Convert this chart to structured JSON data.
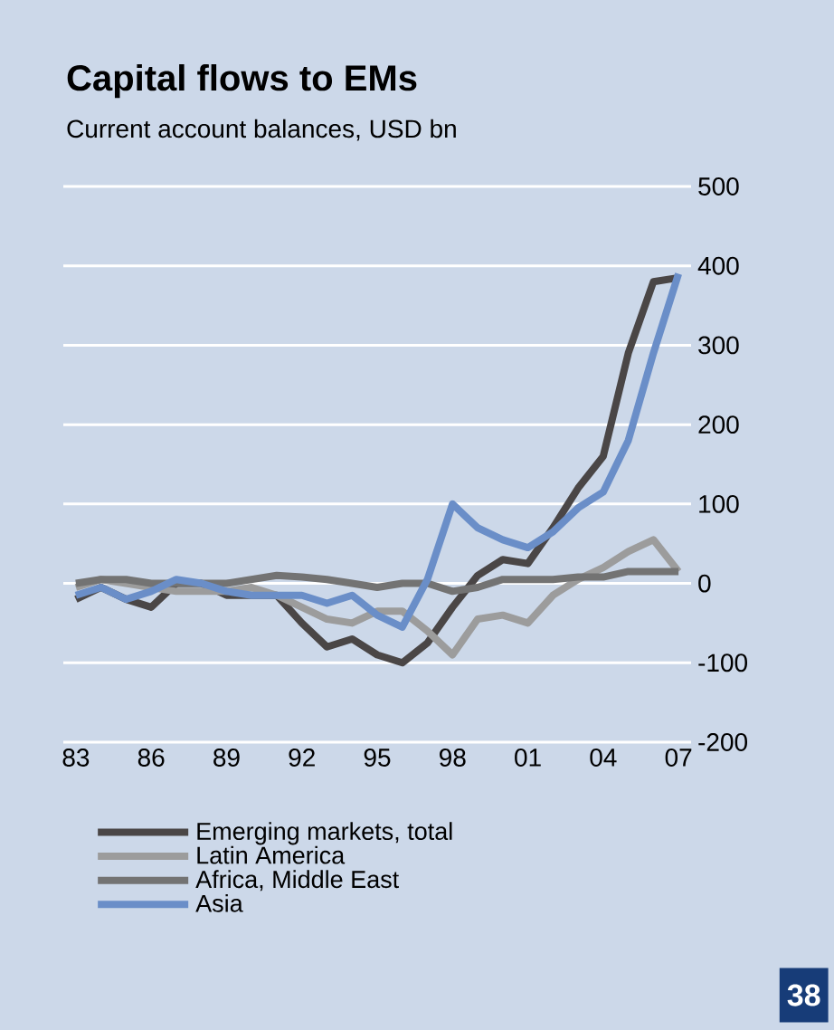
{
  "chart_data": {
    "type": "line",
    "title": "Capital flows to EMs",
    "subtitle": "Current account balances, USD bn",
    "categories": [
      "83",
      null,
      null,
      "86",
      null,
      null,
      "89",
      null,
      null,
      "92",
      null,
      null,
      "95",
      null,
      null,
      "98",
      null,
      null,
      "01",
      null,
      null,
      "04",
      null,
      null,
      "07"
    ],
    "series": [
      {
        "name": "Emerging markets, total",
        "color": "#4a4646",
        "values": [
          -20,
          -5,
          -20,
          -30,
          0,
          0,
          -15,
          -15,
          -15,
          -50,
          -80,
          -70,
          -90,
          -100,
          -75,
          -30,
          10,
          30,
          25,
          70,
          120,
          160,
          290,
          380,
          385
        ]
      },
      {
        "name": "Latin America",
        "color": "#9c9c9c",
        "values": [
          -5,
          5,
          0,
          -5,
          -10,
          -10,
          -10,
          -5,
          -15,
          -30,
          -45,
          -50,
          -35,
          -35,
          -60,
          -90,
          -45,
          -40,
          -50,
          -15,
          5,
          20,
          40,
          55,
          15
        ]
      },
      {
        "name": "Africa, Middle East",
        "color": "#737373",
        "values": [
          0,
          5,
          5,
          0,
          0,
          0,
          0,
          5,
          10,
          8,
          5,
          0,
          -5,
          0,
          0,
          -10,
          -5,
          5,
          5,
          5,
          8,
          8,
          15,
          15,
          15
        ]
      },
      {
        "name": "Asia",
        "color": "#6a8ec8",
        "values": [
          -15,
          -5,
          -20,
          -10,
          5,
          0,
          -10,
          -15,
          -15,
          -15,
          -25,
          -15,
          -40,
          -55,
          5,
          100,
          70,
          55,
          45,
          65,
          95,
          115,
          180,
          290,
          390
        ]
      }
    ],
    "ylim": [
      -200,
      500
    ],
    "yticks": [
      -200,
      -100,
      0,
      100,
      200,
      300,
      400,
      500
    ],
    "grid": "y",
    "legend": "bottom",
    "line_style": "solid",
    "marker": "none",
    "annotations": [
      "38"
    ]
  }
}
